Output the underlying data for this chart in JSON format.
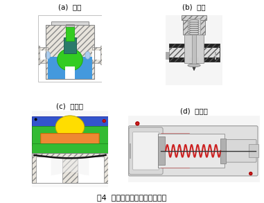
{
  "title": "图4  常用手动开关阀结构原理图",
  "labels": [
    "(a)  球阀",
    "(b)  针阀",
    "(c)  隔膜阀",
    "(d)  膜片阀"
  ],
  "fig_bg": "#ffffff",
  "title_fontsize": 8,
  "label_fontsize": 7.5,
  "hatch_color": "#aaaaaa",
  "ball_valve": {
    "body_color": "#e8e8e8",
    "body_edge": "#888888",
    "green_color": "#33cc22",
    "teal_color": "#2a7a6a",
    "blue_color": "#4499dd",
    "light_blue": "#aaccee"
  },
  "needle_valve": {
    "body_color": "#d8d8d8",
    "body_edge": "#777777",
    "dark_body": "#222222",
    "spring_color": "#999999"
  },
  "diaphragm_valve": {
    "blue_top": "#3355cc",
    "green_body": "#33bb33",
    "orange_part": "#ee8833",
    "yellow_dome": "#ffdd00",
    "black_membrane": "#111111",
    "red_dot": "#cc2222",
    "body_color": "#cccccc"
  },
  "membrane_valve": {
    "body_color": "#cccccc",
    "body_edge": "#999999",
    "spring_color": "#cc2222",
    "rod_color": "#333333",
    "red_dot": "#cc2222"
  }
}
